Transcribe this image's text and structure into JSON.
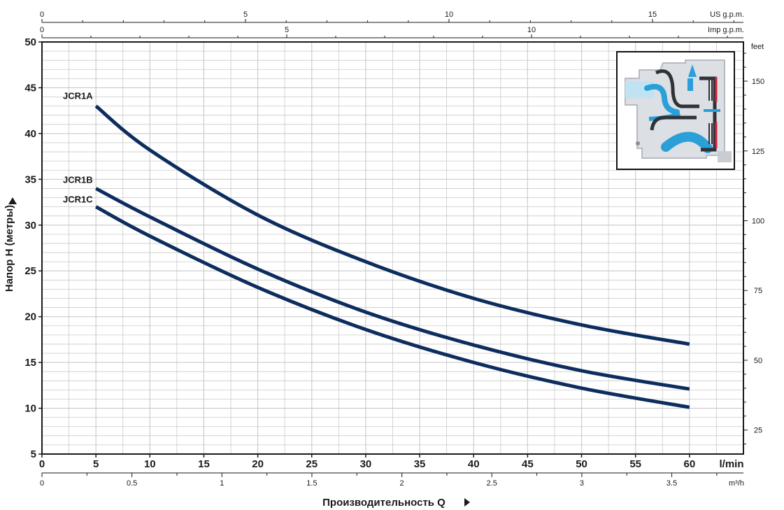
{
  "chart_data": {
    "type": "line",
    "x_axis": {
      "label": "Производительность Q",
      "unit": "l/min",
      "range": [
        0,
        65
      ],
      "ticks": [
        0,
        5,
        10,
        15,
        20,
        25,
        30,
        35,
        40,
        45,
        50,
        55,
        60
      ]
    },
    "y_axis": {
      "label": "Напор H (метры)",
      "range": [
        5,
        50
      ],
      "ticks": [
        5,
        10,
        15,
        20,
        25,
        30,
        35,
        40,
        45,
        50
      ]
    },
    "secondary_axes": {
      "us_gpm": {
        "unit": "US g.p.m.",
        "ticks": [
          0,
          5,
          10,
          15
        ]
      },
      "imp_gpm": {
        "unit": "Imp g.p.m.",
        "ticks": [
          0,
          5,
          10
        ]
      },
      "m3h": {
        "unit": "m³/h",
        "ticks": [
          "0",
          "0.5",
          "1",
          "1.5",
          "2",
          "2.5",
          "3",
          "3.5"
        ]
      },
      "feet": {
        "unit": "feet",
        "ticks": [
          25,
          50,
          75,
          100,
          125,
          150
        ]
      }
    },
    "grid": true,
    "series": [
      {
        "name": "JCR1A",
        "x": [
          5,
          10,
          20,
          30,
          40,
          50,
          60
        ],
        "y": [
          43,
          38.2,
          31.1,
          26.0,
          22.0,
          19.1,
          17.0
        ]
      },
      {
        "name": "JCR1B",
        "x": [
          5,
          10,
          20,
          30,
          40,
          50,
          60
        ],
        "y": [
          34,
          30.9,
          25.2,
          20.5,
          16.9,
          14.1,
          12.1
        ]
      },
      {
        "name": "JCR1C",
        "x": [
          5,
          10,
          20,
          30,
          40,
          50,
          60
        ],
        "y": [
          32,
          28.8,
          23.2,
          18.6,
          15.0,
          12.2,
          10.1
        ]
      }
    ],
    "colors": {
      "curve": "#0d2d5e",
      "grid": "#c9c9c9",
      "water": "#2a9fd8",
      "impeller": "#d8203a"
    }
  }
}
